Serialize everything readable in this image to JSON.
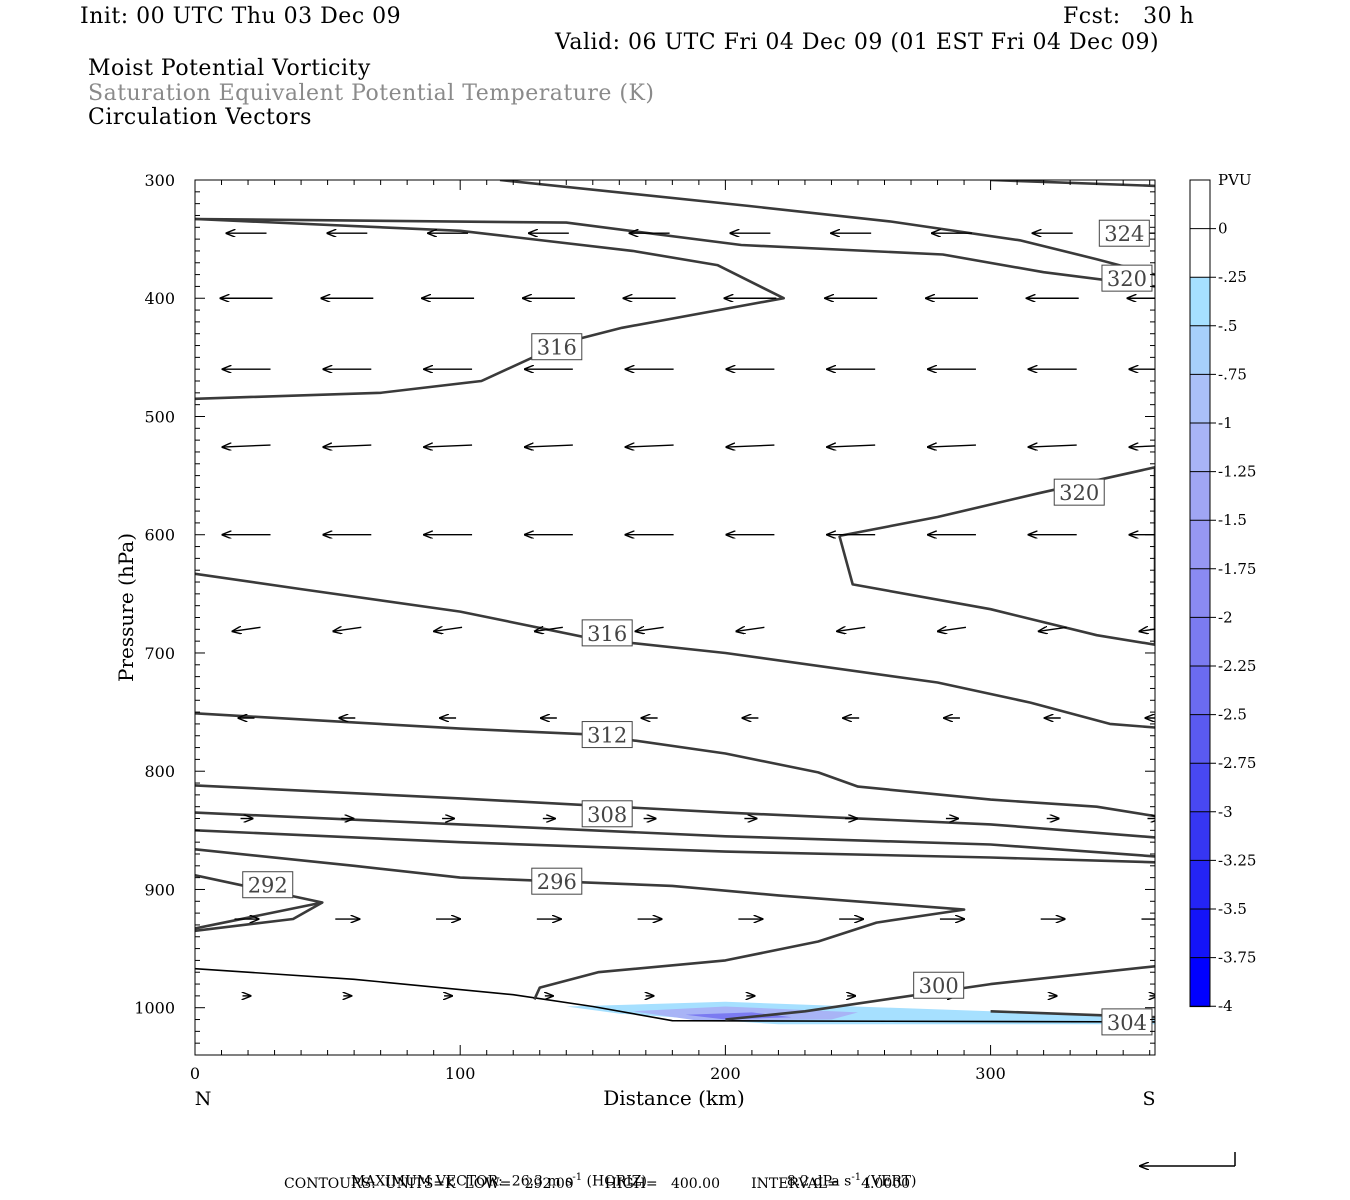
{
  "header": {
    "init": "Init: 00 UTC Thu 03 Dec 09",
    "fcst": "Fcst:   30 h",
    "valid": "Valid: 06 UTC Fri 04 Dec 09 (01 EST Fri 04 Dec 09)",
    "fields": [
      "Moist Potential Vorticity",
      "Saturation Equivalent Potential Temperature (K)",
      "Circulation Vectors"
    ]
  },
  "chart_data": {
    "type": "cross-section",
    "xlabel": "Distance (km)",
    "ylabel": "Pressure (hPa)",
    "xlim": [
      0,
      362
    ],
    "ylim": [
      1040,
      300
    ],
    "xticks": [
      0,
      100,
      200,
      300
    ],
    "yticks": [
      300,
      400,
      500,
      600,
      700,
      800,
      900,
      1000
    ],
    "x_end_labels": {
      "left": "N",
      "right": "S"
    },
    "colorbar": {
      "units": "PVU",
      "labels": [
        "0",
        "-.25",
        "-.5",
        "-.75",
        "-1",
        "-1.25",
        "-1.5",
        "-1.75",
        "-2",
        "-2.25",
        "-2.5",
        "-2.75",
        "-3",
        "-3.25",
        "-3.5",
        "-3.75",
        "-4"
      ],
      "colors": [
        "#ffffff",
        "#ffffff",
        "#a6e0ff",
        "#a7d0fb",
        "#aac0f8",
        "#a8b4f6",
        "#a0a6f4",
        "#9697f3",
        "#8a8af2",
        "#7b7bf1",
        "#6b6bf1",
        "#5a5af1",
        "#4848f2",
        "#3636f3",
        "#2424f5",
        "#1414f8",
        "#0000ff"
      ]
    },
    "contours": [
      {
        "label": "324",
        "label_at": [
          341,
          345
        ],
        "points": [
          [
            115,
            300
          ],
          [
            209,
            322
          ],
          [
            262,
            335
          ],
          [
            311,
            351
          ],
          [
            340,
            367
          ],
          [
            362,
            380
          ]
        ]
      },
      {
        "label": "324",
        "label_at": null,
        "points": [
          [
            300,
            300
          ],
          [
            362,
            305
          ]
        ]
      },
      {
        "label": "320",
        "label_at": [
          342,
          383
        ],
        "points": [
          [
            0,
            333
          ],
          [
            140,
            336
          ],
          [
            206,
            355
          ],
          [
            282,
            363
          ],
          [
            320,
            378
          ],
          [
            362,
            390
          ]
        ]
      },
      {
        "label": "316",
        "label_at": [
          127,
          441
        ],
        "points": [
          [
            0,
            485
          ],
          [
            70,
            480
          ],
          [
            108,
            470
          ],
          [
            140,
            437
          ],
          [
            161,
            425
          ],
          [
            222,
            400
          ],
          [
            197,
            372
          ],
          [
            165,
            360
          ],
          [
            100,
            343
          ],
          [
            0,
            333
          ]
        ]
      },
      {
        "label": "320",
        "label_at": [
          324,
          564
        ],
        "points": [
          [
            243,
            601
          ],
          [
            248,
            642
          ],
          [
            300,
            663
          ],
          [
            340,
            685
          ],
          [
            362,
            693
          ],
          [
            362,
            543
          ],
          [
            318,
            565
          ],
          [
            280,
            585
          ],
          [
            243,
            601
          ]
        ]
      },
      {
        "label": "316",
        "label_at": [
          146,
          683
        ],
        "points": [
          [
            0,
            633
          ],
          [
            40,
            646
          ],
          [
            100,
            665
          ],
          [
            150,
            688
          ],
          [
            200,
            700
          ],
          [
            280,
            725
          ],
          [
            315,
            742
          ],
          [
            345,
            760
          ],
          [
            362,
            763
          ]
        ]
      },
      {
        "label": "312",
        "label_at": [
          146,
          769
        ],
        "points": [
          [
            0,
            751
          ],
          [
            100,
            764
          ],
          [
            150,
            769
          ],
          [
            200,
            785
          ],
          [
            235,
            801
          ],
          [
            250,
            813
          ],
          [
            300,
            824
          ],
          [
            340,
            830
          ],
          [
            362,
            838
          ]
        ]
      },
      {
        "label": "308",
        "label_at": [
          146,
          836
        ],
        "points": [
          [
            0,
            812
          ],
          [
            100,
            823
          ],
          [
            200,
            835
          ],
          [
            300,
            845
          ],
          [
            362,
            856
          ]
        ]
      },
      {
        "label": "304",
        "label_at": null,
        "points": [
          [
            0,
            835
          ],
          [
            100,
            845
          ],
          [
            200,
            855
          ],
          [
            300,
            862
          ],
          [
            362,
            872
          ]
        ]
      },
      {
        "label": "300",
        "label_at": null,
        "points": [
          [
            0,
            850
          ],
          [
            100,
            860
          ],
          [
            200,
            868
          ],
          [
            300,
            873
          ],
          [
            362,
            877
          ]
        ]
      },
      {
        "label": "296",
        "label_at": [
          127,
          893
        ],
        "points": [
          [
            0,
            866
          ],
          [
            60,
            880
          ],
          [
            100,
            890
          ],
          [
            180,
            897
          ],
          [
            220,
            905
          ],
          [
            290,
            917
          ],
          [
            257,
            928
          ],
          [
            235,
            944
          ],
          [
            200,
            960
          ],
          [
            152,
            970
          ],
          [
            130,
            983
          ],
          [
            128,
            993
          ]
        ]
      },
      {
        "label": "292",
        "label_at": [
          18,
          896
        ],
        "points": [
          [
            0,
            888
          ],
          [
            48,
            911
          ],
          [
            0,
            933
          ]
        ]
      },
      {
        "label": "292",
        "label_at": null,
        "points": [
          [
            48,
            911
          ],
          [
            37,
            925
          ],
          [
            0,
            935
          ]
        ]
      },
      {
        "label": "300",
        "label_at": [
          271,
          981
        ],
        "points": [
          [
            200,
            1010
          ],
          [
            230,
            1003
          ],
          [
            300,
            980
          ],
          [
            362,
            965
          ]
        ]
      },
      {
        "label": "304",
        "label_at": [
          342,
          1012
        ],
        "points": [
          [
            300,
            1003
          ],
          [
            362,
            1008
          ]
        ]
      }
    ],
    "surface_line": [
      [
        0,
        967
      ],
      [
        60,
        976
      ],
      [
        120,
        989
      ],
      [
        150,
        999
      ],
      [
        180,
        1011
      ],
      [
        362,
        1012
      ]
    ],
    "pv_shading": [
      {
        "level": -0.25,
        "polygon": [
          [
            140,
            999
          ],
          [
            200,
            995
          ],
          [
            300,
            1003
          ],
          [
            362,
            1008
          ],
          [
            362,
            1014
          ],
          [
            220,
            1014
          ],
          [
            160,
            1005
          ]
        ]
      },
      {
        "level": -1.0,
        "polygon": [
          [
            165,
            1003
          ],
          [
            200,
            999
          ],
          [
            250,
            1004
          ],
          [
            240,
            1010
          ],
          [
            190,
            1011
          ]
        ]
      },
      {
        "level": -2.0,
        "polygon": [
          [
            185,
            1006
          ],
          [
            210,
            1004
          ],
          [
            225,
            1008
          ],
          [
            200,
            1010
          ]
        ]
      }
    ],
    "vector_rows": [
      {
        "p": 345,
        "dx": -20,
        "dy": 0
      },
      {
        "p": 400,
        "dx": -26,
        "dy": 0
      },
      {
        "p": 460,
        "dx": -24,
        "dy": 0
      },
      {
        "p": 525,
        "dx": -24,
        "dy": 1
      },
      {
        "p": 600,
        "dx": -24,
        "dy": 0
      },
      {
        "p": 680,
        "dx": -14,
        "dy": 2
      },
      {
        "p": 755,
        "dx": -8,
        "dy": 0
      },
      {
        "p": 840,
        "dx": 6,
        "dy": 0
      },
      {
        "p": 925,
        "dx": 12,
        "dy": 0
      },
      {
        "p": 990,
        "dx": 4,
        "dy": 0
      }
    ],
    "footer": {
      "max_vector": "MAXIMUM VECTOR:  26.3 m s",
      "max_vector_exp": "-1",
      "max_vector_horiz": " (HORIZ)",
      "vert": "8.2 dPa s",
      "vert_exp": "-1",
      "vert_tail": " (VERT)",
      "contours": "CONTOURS:  UNITS=K  LOW=   292.00       HIGH=   400.00       INTERVAL=     4.0000"
    }
  }
}
